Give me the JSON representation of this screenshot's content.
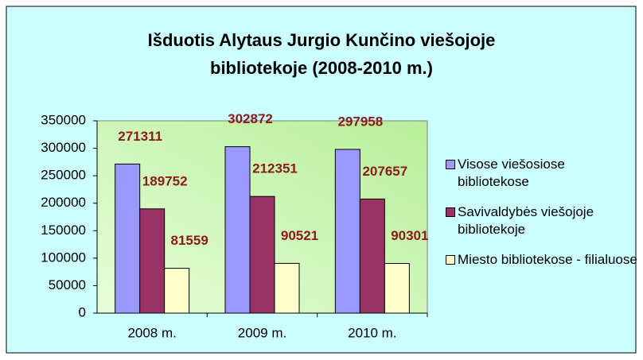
{
  "chart_data": {
    "type": "bar",
    "title": "Išduotis Alytaus Jurgio Kunčino viešojoje bibliotekoje (2008-2010 m.)",
    "categories": [
      "2008 m.",
      "2009 m.",
      "2010 m."
    ],
    "series": [
      {
        "name": "Visose viešosiose bibliotekose",
        "color": "#9999ff",
        "values": [
          271311,
          302872,
          297958
        ]
      },
      {
        "name": "Savivaldybės viešojoje bibliotekoje",
        "color": "#993366",
        "values": [
          189752,
          212351,
          207657
        ]
      },
      {
        "name": "Miesto bibliotekose - filialuose",
        "color": "#ffffcc",
        "values": [
          81559,
          90521,
          90301
        ]
      }
    ],
    "ylim": [
      0,
      350000
    ],
    "yticks": [
      0,
      50000,
      100000,
      150000,
      200000,
      250000,
      300000,
      350000
    ],
    "legend": "right"
  }
}
